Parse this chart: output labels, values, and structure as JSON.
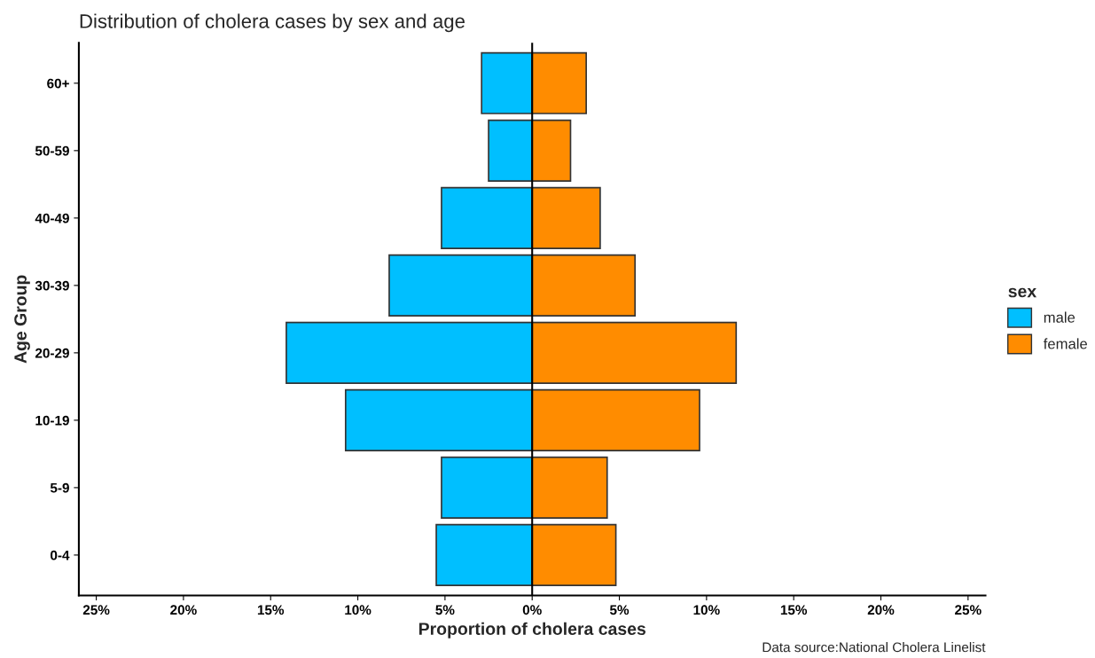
{
  "chart_data": {
    "type": "bar",
    "orientation": "horizontal",
    "stacked": true,
    "title": "Distribution of cholera cases by sex and age",
    "xlabel": "Proportion of cholera cases",
    "ylabel": "Age Group",
    "legend_title": "sex",
    "categories": [
      "60+",
      "50-59",
      "40-49",
      "30-39",
      "20-29",
      "10-19",
      "5-9",
      "0-4"
    ],
    "series": [
      {
        "name": "male",
        "color": "#00bfff",
        "values": [
          -2.9,
          -2.5,
          -5.2,
          -8.2,
          -14.1,
          -10.7,
          -5.2,
          -5.5
        ]
      },
      {
        "name": "female",
        "color": "#ff8c00",
        "values": [
          3.1,
          2.2,
          3.9,
          5.9,
          11.7,
          9.6,
          4.3,
          4.8
        ]
      }
    ],
    "xlim": [
      -26,
      26
    ],
    "xticks": [
      {
        "value": -25,
        "label": "25%"
      },
      {
        "value": -20,
        "label": "20%"
      },
      {
        "value": -15,
        "label": "15%"
      },
      {
        "value": -10,
        "label": "10%"
      },
      {
        "value": -5,
        "label": "5%"
      },
      {
        "value": 0,
        "label": "0%"
      },
      {
        "value": 5,
        "label": "5%"
      },
      {
        "value": 10,
        "label": "10%"
      },
      {
        "value": 15,
        "label": "15%"
      },
      {
        "value": 20,
        "label": "20%"
      },
      {
        "value": 25,
        "label": "25%"
      }
    ],
    "ref_lines": [
      {
        "axis": "x",
        "value": 0,
        "color": "#000000"
      }
    ],
    "grid": false,
    "legend": "right",
    "annotations": [
      "Data source:National Cholera Linelist"
    ]
  }
}
